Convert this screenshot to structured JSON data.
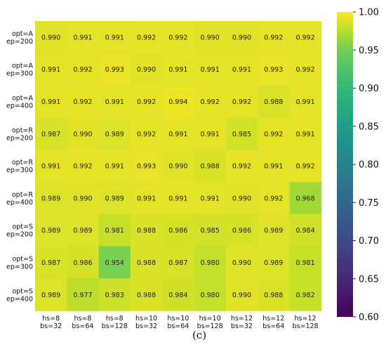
{
  "chart_data": {
    "type": "heatmap",
    "title": "",
    "xlabel": "",
    "ylabel": "",
    "x_categories": [
      [
        "hs=8",
        "bs=32"
      ],
      [
        "hs=8",
        "bs=64"
      ],
      [
        "hs=8",
        "bs=128"
      ],
      [
        "hs=10",
        "bs=32"
      ],
      [
        "hs=10",
        "bs=64"
      ],
      [
        "hs=10",
        "bs=128"
      ],
      [
        "hs=12",
        "bs=32"
      ],
      [
        "hs=12",
        "bs=64"
      ],
      [
        "hs=12",
        "bs=128"
      ]
    ],
    "y_categories": [
      [
        "opt=A",
        "ep=200"
      ],
      [
        "opt=A",
        "ep=300"
      ],
      [
        "opt=A",
        "ep=400"
      ],
      [
        "opt=R",
        "ep=200"
      ],
      [
        "opt=R",
        "ep=300"
      ],
      [
        "opt=R",
        "ep=400"
      ],
      [
        "opt=S",
        "ep=200"
      ],
      [
        "opt=S",
        "ep=300"
      ],
      [
        "opt=S",
        "ep=400"
      ]
    ],
    "values": [
      [
        0.99,
        0.991,
        0.991,
        0.992,
        0.992,
        0.99,
        0.99,
        0.992,
        0.992
      ],
      [
        0.991,
        0.992,
        0.993,
        0.99,
        0.991,
        0.991,
        0.991,
        0.993,
        0.992
      ],
      [
        0.991,
        0.992,
        0.991,
        0.992,
        0.994,
        0.992,
        0.992,
        0.988,
        0.991
      ],
      [
        0.987,
        0.99,
        0.989,
        0.992,
        0.991,
        0.991,
        0.985,
        0.992,
        0.991
      ],
      [
        0.991,
        0.992,
        0.991,
        0.993,
        0.99,
        0.988,
        0.992,
        0.991,
        0.992
      ],
      [
        0.989,
        0.99,
        0.989,
        0.991,
        0.991,
        0.991,
        0.99,
        0.992,
        0.968
      ],
      [
        0.989,
        0.989,
        0.981,
        0.988,
        0.986,
        0.985,
        0.986,
        0.989,
        0.984
      ],
      [
        0.987,
        0.986,
        0.954,
        0.988,
        0.987,
        0.98,
        0.99,
        0.989,
        0.981
      ],
      [
        0.989,
        0.977,
        0.983,
        0.988,
        0.984,
        0.98,
        0.99,
        0.988,
        0.982
      ]
    ],
    "colorscale": "viridis",
    "vmin": 0.6,
    "vmax": 1.0,
    "colorbar_ticks": [
      "0.60",
      "0.65",
      "0.70",
      "0.75",
      "0.80",
      "0.85",
      "0.90",
      "0.95",
      "1.00"
    ],
    "grid": false,
    "legend": "colorbar-right"
  },
  "caption": "(c)"
}
